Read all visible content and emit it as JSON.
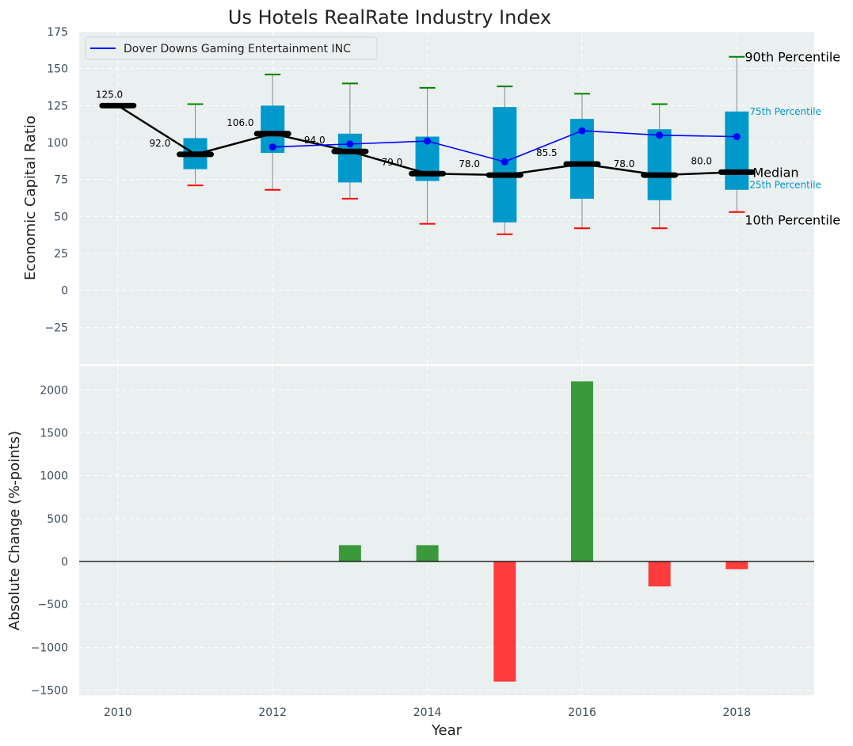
{
  "chart_data": [
    {
      "type": "box-line",
      "title": "Us Hotels RealRate Industry Index",
      "ylabel": "Economic Capital Ratio",
      "ylim": [
        -50,
        175
      ],
      "yticks": [
        -25,
        0,
        25,
        50,
        75,
        100,
        125,
        150,
        175
      ],
      "ytick_labels": [
        "−25",
        "0",
        "25",
        "50",
        "75",
        "100",
        "125",
        "150",
        "175"
      ],
      "years": [
        2010,
        2011,
        2012,
        2013,
        2014,
        2015,
        2016,
        2017,
        2018
      ],
      "median": [
        125,
        92,
        106,
        94,
        79,
        78,
        85.5,
        78,
        80
      ],
      "median_labels": [
        "125.0",
        "92.0",
        "106.0",
        "94.0",
        "79.0",
        "78.0",
        "85.5",
        "78.0",
        "80.0"
      ],
      "p10": [
        null,
        71,
        68,
        62,
        45,
        38,
        42,
        42,
        53
      ],
      "p25": [
        null,
        82,
        93,
        73,
        74,
        46,
        62,
        61,
        68
      ],
      "p75": [
        null,
        103,
        125,
        106,
        104,
        124,
        116,
        109,
        121
      ],
      "p90": [
        null,
        126,
        146,
        140,
        137,
        138,
        133,
        126,
        158
      ],
      "series": [
        {
          "name": "Dover Downs Gaming Entertainment INC",
          "color": "#0000ff",
          "x": [
            2012,
            2013,
            2014,
            2015,
            2016,
            2017,
            2018
          ],
          "values": [
            97,
            99,
            101,
            87,
            108,
            105,
            104
          ]
        }
      ],
      "percentile_labels": {
        "p90": "90th Percentile",
        "p75": "75th Percentile",
        "median": "Median",
        "p25": "25th Percentile",
        "p10": "10th Percentile"
      },
      "legend_position": "top-left",
      "colors": {
        "box": "#0099cc",
        "median": "#000000",
        "p90_cap": "#008000",
        "p10_cap": "#ff0000",
        "whisker": "#888888"
      }
    },
    {
      "type": "bar",
      "ylabel": "Absolute Change (%-points)",
      "xlabel": "Year",
      "ylim": [
        -1560,
        2280
      ],
      "yticks": [
        -1500,
        -1000,
        -500,
        0,
        500,
        1000,
        1500,
        2000
      ],
      "ytick_labels": [
        "−1500",
        "−1000",
        "−500",
        "0",
        "500",
        "1000",
        "1500",
        "2000"
      ],
      "x": [
        2013,
        2014,
        2015,
        2016,
        2017,
        2018
      ],
      "values": [
        190,
        190,
        -1400,
        2100,
        -290,
        -90
      ],
      "colors": {
        "positive": "#3a9a3a",
        "negative": "#ff3b3b"
      }
    }
  ],
  "xaxis": {
    "xlim": [
      2009.5,
      2019
    ],
    "ticks": [
      2010,
      2012,
      2014,
      2016,
      2018
    ],
    "tick_labels": [
      "2010",
      "2012",
      "2014",
      "2016",
      "2018"
    ]
  }
}
